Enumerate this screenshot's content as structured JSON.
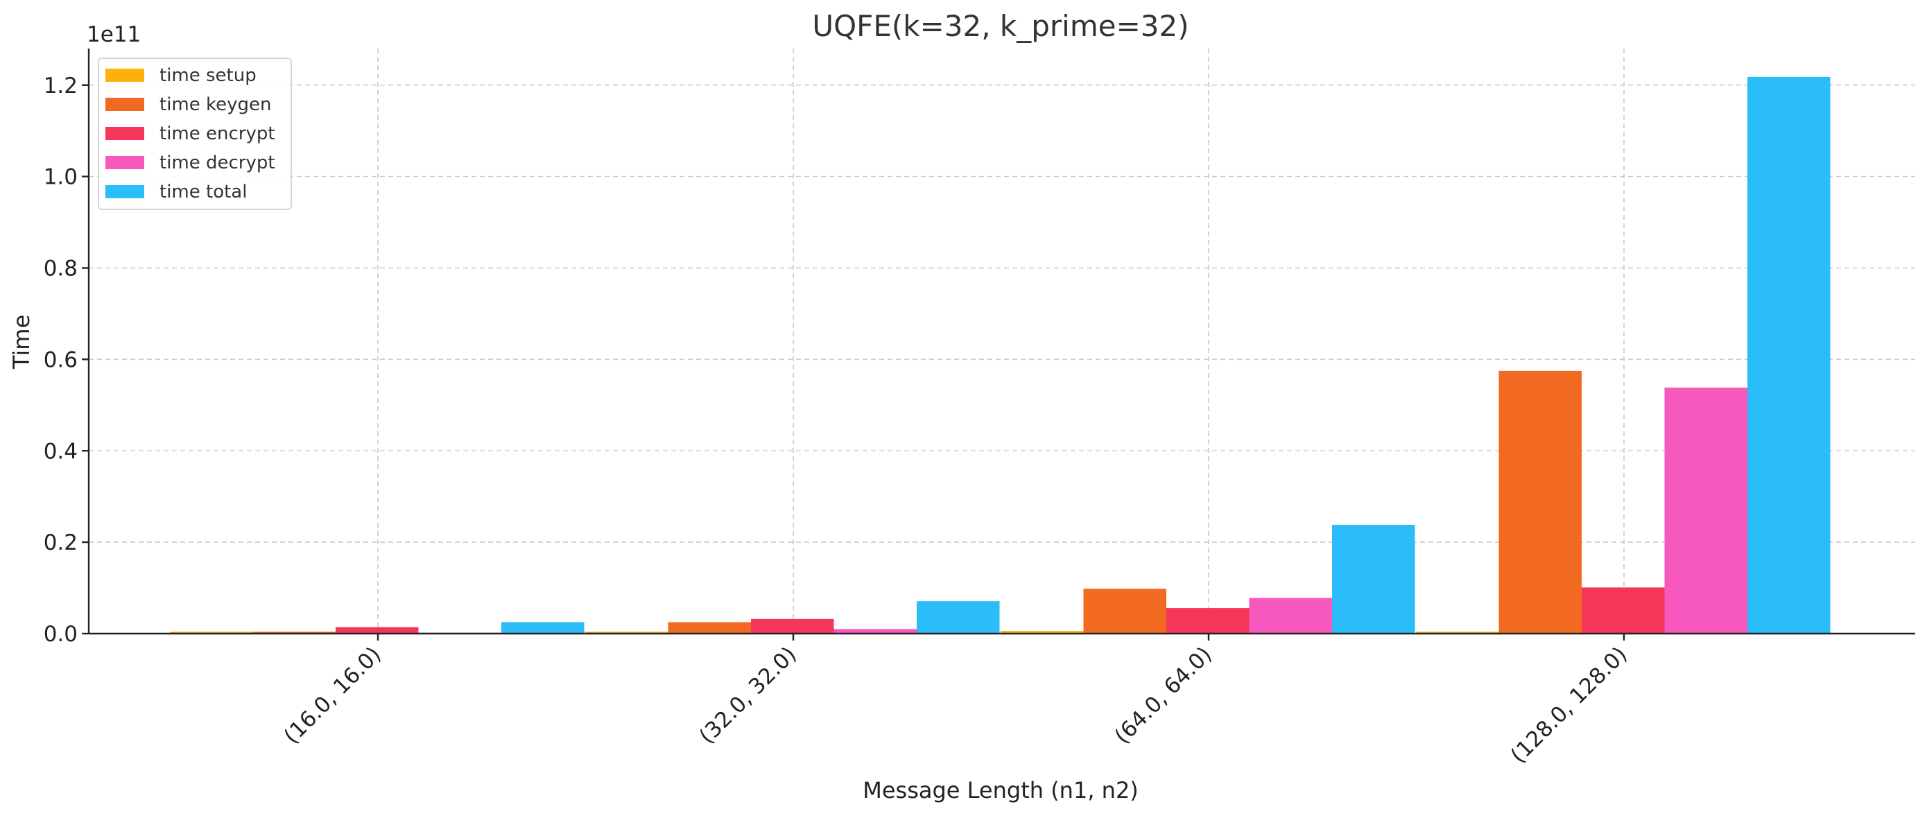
{
  "chart_data": {
    "type": "bar",
    "title": "UQFE(k=32, k_prime=32)",
    "xlabel": "Message Length (n1, n2)",
    "ylabel": "Time",
    "y_exponent_label": "1e11",
    "categories": [
      "(16.0, 16.0)",
      "(32.0, 32.0)",
      "(64.0, 64.0)",
      "(128.0, 128.0)"
    ],
    "series": [
      {
        "name": "time setup",
        "color": "#ffb00f",
        "values": [
          0.004,
          0.004,
          0.006,
          0.004
        ]
      },
      {
        "name": "time keygen",
        "color": "#f26a21",
        "values": [
          0.004,
          0.025,
          0.098,
          0.575
        ]
      },
      {
        "name": "time encrypt",
        "color": "#f5355a",
        "values": [
          0.014,
          0.032,
          0.056,
          0.101
        ]
      },
      {
        "name": "time decrypt",
        "color": "#f758bd",
        "values": [
          0.002,
          0.01,
          0.078,
          0.538
        ]
      },
      {
        "name": "time total",
        "color": "#2bbcfa",
        "values": [
          0.025,
          0.071,
          0.238,
          1.218
        ]
      }
    ],
    "ylim": [
      0,
      1.28
    ],
    "yticks": [
      0.0,
      0.2,
      0.4,
      0.6,
      0.8,
      1.0,
      1.2
    ],
    "ytick_labels": [
      "0.0",
      "0.2",
      "0.4",
      "0.6",
      "0.8",
      "1.0",
      "1.2"
    ],
    "grid": true,
    "legend_position": "top-left"
  }
}
